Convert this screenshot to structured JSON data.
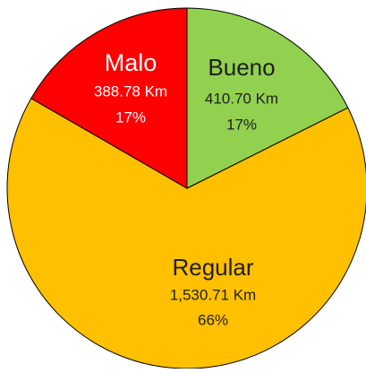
{
  "chart_data": {
    "type": "pie",
    "categories": [
      "Bueno",
      "Regular",
      "Malo"
    ],
    "values": [
      410.7,
      1530.71,
      388.78
    ],
    "value_labels": [
      "410.70 Km",
      "1,530.71 Km",
      "388.78 Km"
    ],
    "percents": [
      17,
      66,
      17
    ],
    "percent_labels": [
      "17%",
      "66%",
      "17%"
    ],
    "colors": [
      "#92d050",
      "#ffc000",
      "#ff0000"
    ]
  }
}
